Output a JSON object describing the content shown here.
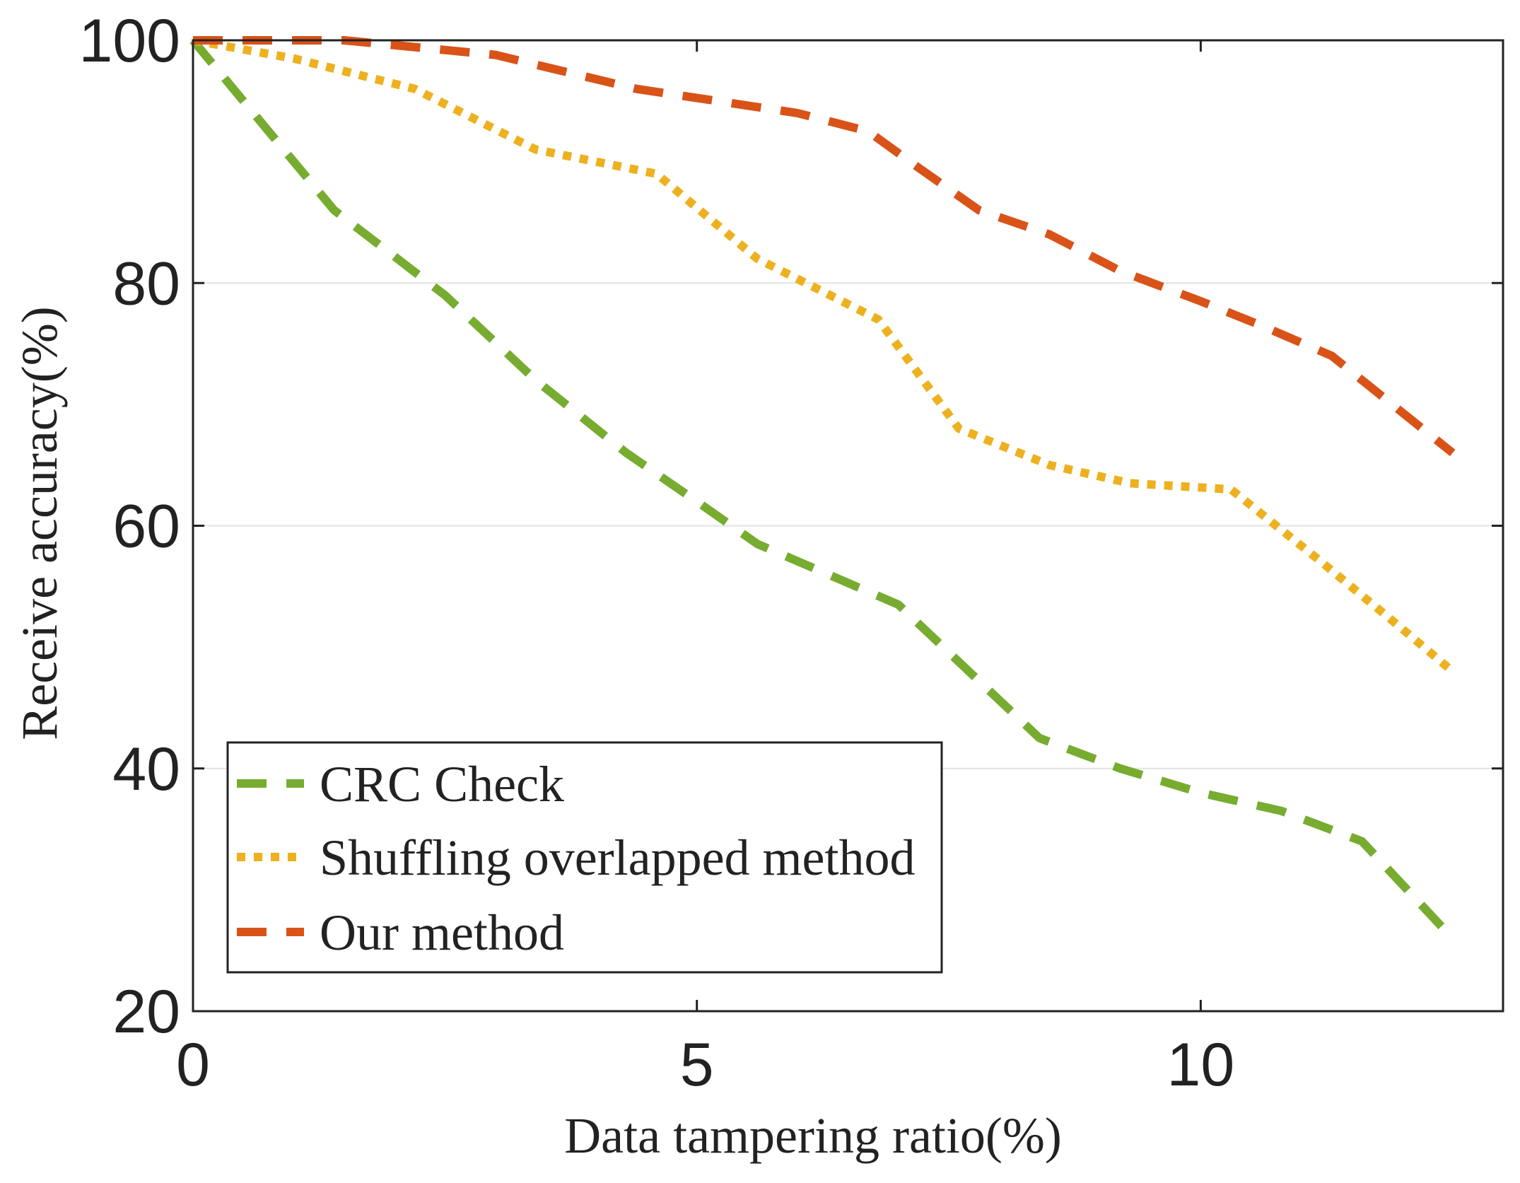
{
  "chart_data": {
    "type": "line",
    "title": "",
    "xlabel": "Data tampering ratio(%)",
    "ylabel": "Receive accuracy(%)",
    "xlim": [
      0,
      13
    ],
    "ylim": [
      20,
      100
    ],
    "xticks": [
      0,
      5,
      10
    ],
    "yticks": [
      20,
      40,
      60,
      80,
      100
    ],
    "grid": "horizontal",
    "legend_position": "bottom-left",
    "series": [
      {
        "name": "CRC Check",
        "color": "#77ac30",
        "style": "dashed",
        "x": [
          0,
          1.4,
          2.5,
          3.4,
          4.3,
          5.0,
          5.6,
          6.3,
          7.0,
          7.7,
          8.4,
          9.2,
          10.0,
          10.8,
          11.6,
          12.5
        ],
        "y": [
          100,
          86,
          79,
          72,
          66,
          62,
          58.5,
          56,
          53.5,
          48,
          42.5,
          40,
          38,
          36.5,
          34,
          26
        ]
      },
      {
        "name": "Shuffling overlapped method",
        "color": "#edb120",
        "style": "dotted",
        "x": [
          0,
          1,
          2.2,
          3.4,
          4.6,
          5.6,
          6.8,
          7.6,
          8.5,
          9.3,
          10.3,
          11.2,
          12.0,
          12.5
        ],
        "y": [
          100,
          98.5,
          96,
          91,
          89,
          82,
          77,
          68,
          65,
          63.5,
          63,
          57,
          51.5,
          48
        ]
      },
      {
        "name": "Our method",
        "color": "#d95319",
        "style": "dashed",
        "x": [
          0,
          1.5,
          3.0,
          4.4,
          5.2,
          6.0,
          6.7,
          7.2,
          7.8,
          8.5,
          9.2,
          10.0,
          10.6,
          11.3,
          11.9,
          12.5
        ],
        "y": [
          100,
          100,
          98.8,
          96,
          95,
          94,
          92.5,
          89.5,
          86,
          84,
          81,
          78.5,
          76.5,
          74,
          70,
          66
        ]
      }
    ]
  }
}
